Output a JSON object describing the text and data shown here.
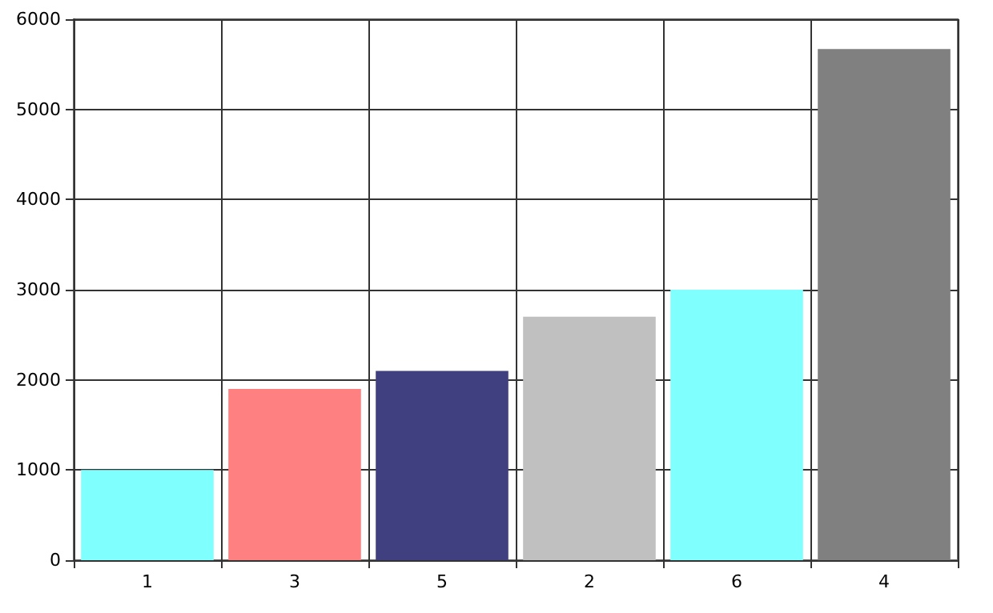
{
  "chart_data": {
    "type": "bar",
    "categories": [
      "1",
      "3",
      "5",
      "2",
      "6",
      "4"
    ],
    "values": [
      1000,
      1900,
      2100,
      2700,
      3000,
      5670
    ],
    "colors": [
      "#80ffff",
      "#ff8080",
      "#404080",
      "#c0c0c0",
      "#80ffff",
      "#808080"
    ],
    "ylim": [
      0,
      6000
    ],
    "yticks": [
      0,
      1000,
      2000,
      3000,
      4000,
      5000,
      6000
    ],
    "grid": true
  }
}
